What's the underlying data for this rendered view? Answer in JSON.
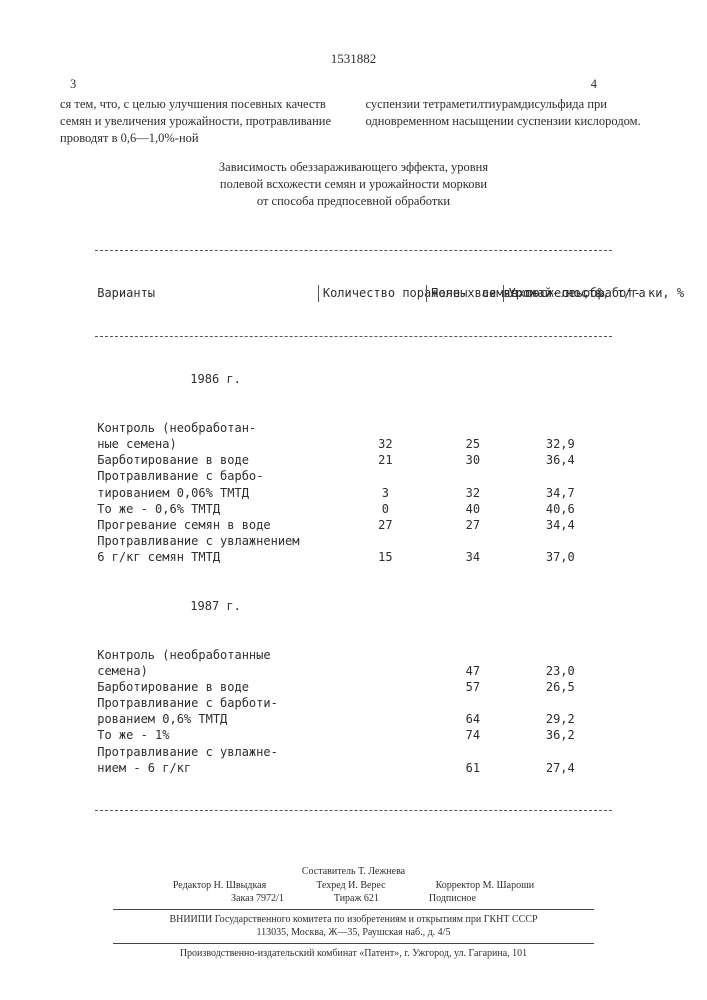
{
  "doc_number": "1531882",
  "page_left_num": "3",
  "page_right_num": "4",
  "left_para": "ся тем, что, с целью улучшения посевных качеств семян и увеличения урожайности, протравливание проводят в 0,6—1,0%-ной",
  "right_para": "суспензии тетраметилтиурамдисульфида при одновременном насыщении суспензии кислородом.",
  "table_title_l1": "Зависимость обеззараживающего эффекта, уровня",
  "table_title_l2": "полевой всхожести семян и урожайности моркови",
  "table_title_l3": "от способа предпосевной обработки",
  "headers": {
    "h1": "Варианты",
    "h2": "Количество пораженных семян пос- ле обработ- ки, %",
    "h3": "Поле- вая всхо- жесть, %",
    "h4": "Урожай- ность, т/га"
  },
  "sec86": "1986 г.",
  "rows86": [
    {
      "c1": "Контроль (необработан-",
      "c2": "",
      "c3": "",
      "c4": ""
    },
    {
      "c1": "ные семена)",
      "c2": "32",
      "c3": "25",
      "c4": "32,9"
    },
    {
      "c1": "Барботирование в воде",
      "c2": "21",
      "c3": "30",
      "c4": "36,4"
    },
    {
      "c1": "Протравливание с барбо-",
      "c2": "",
      "c3": "",
      "c4": ""
    },
    {
      "c1": "тированием 0,06% ТМТД",
      "c2": "3",
      "c3": "32",
      "c4": "34,7"
    },
    {
      "c1": "То же - 0,6% ТМТД",
      "c2": "0",
      "c3": "40",
      "c4": "40,6"
    },
    {
      "c1": "Прогревание семян в воде",
      "c2": "27",
      "c3": "27",
      "c4": "34,4"
    },
    {
      "c1": "Протравливание с увлажнением",
      "c2": "",
      "c3": "",
      "c4": ""
    },
    {
      "c1": "6 г/кг семян ТМТД",
      "c2": "15",
      "c3": "34",
      "c4": "37,0"
    }
  ],
  "sec87": "1987 г.",
  "rows87": [
    {
      "c1": "Контроль (необработанные",
      "c2": "",
      "c3": "",
      "c4": ""
    },
    {
      "c1": "семена)",
      "c2": "",
      "c3": "47",
      "c4": "23,0"
    },
    {
      "c1": "Барботирование в воде",
      "c2": "",
      "c3": "57",
      "c4": "26,5"
    },
    {
      "c1": "Протравливание с барботи-",
      "c2": "",
      "c3": "",
      "c4": ""
    },
    {
      "c1": "рованием 0,6% ТМТД",
      "c2": "",
      "c3": "64",
      "c4": "29,2"
    },
    {
      "c1": "То же - 1%",
      "c2": "",
      "c3": "74",
      "c4": "36,2"
    },
    {
      "c1": "Протравливание с увлажне-",
      "c2": "",
      "c3": "",
      "c4": ""
    },
    {
      "c1": "нием - 6 г/кг",
      "c2": "",
      "c3": "61",
      "c4": "27,4"
    }
  ],
  "footer": {
    "composer": "Составитель Т. Лежнева",
    "editor": "Редактор Н. Швыдкая",
    "tech": "Техред И. Верес",
    "corrector": "Корректор М. Шароши",
    "order": "Заказ 7972/1",
    "tiraj": "Тираж 621",
    "sub": "Подписное",
    "org1": "ВНИИПИ Государственного комитета по изобретениям и открытиям при ГКНТ СССР",
    "org2": "113035, Москва, Ж—35, Раушская наб., д. 4/5",
    "org3": "Производственно-издательский комбинат «Патент», г. Ужгород, ул. Гагарина, 101"
  }
}
